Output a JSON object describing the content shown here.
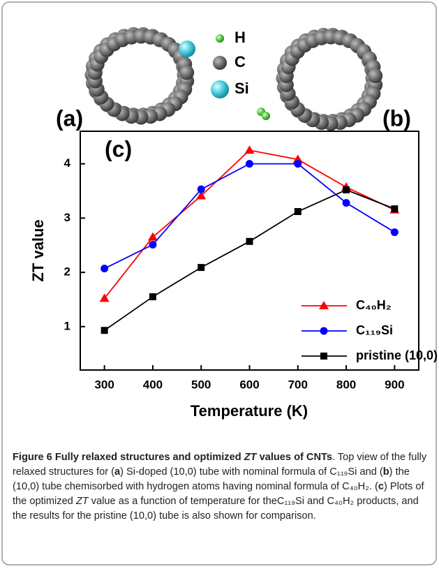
{
  "panels": {
    "a": "(a)",
    "b": "(b)"
  },
  "atom_legend": [
    "H",
    "C",
    "Si"
  ],
  "chart_data": {
    "type": "line",
    "panel_label": "(c)",
    "x_label": "Temperature (K)",
    "y_label": "ZT value",
    "x": [
      300,
      400,
      500,
      600,
      700,
      800,
      900
    ],
    "series": [
      {
        "name": "C₄₀H₂",
        "color": "#ff0000",
        "marker": "triangle",
        "values": [
          1.52,
          2.65,
          3.41,
          4.25,
          4.08,
          3.57,
          3.15
        ]
      },
      {
        "name": "C₁₁₉Si",
        "color": "#0000ff",
        "marker": "circle",
        "values": [
          2.07,
          2.51,
          3.53,
          4.0,
          4.0,
          3.28,
          2.74
        ]
      },
      {
        "name": "pristine (10,0)",
        "color": "#000000",
        "marker": "square",
        "values": [
          0.93,
          1.55,
          2.09,
          2.57,
          3.12,
          3.52,
          3.17
        ]
      }
    ],
    "xlim": [
      250,
      950
    ],
    "xticks": [
      300,
      400,
      500,
      600,
      700,
      800,
      900
    ],
    "ylim": [
      0.2,
      4.6
    ],
    "yticks": [
      1,
      2,
      3,
      4
    ],
    "legend": "lower right"
  },
  "caption": [
    "Figure 6 Fully relaxed structures and optimized ",
    "ZT",
    " values of CNTs",
    ". Top view of the fully relaxed structures for (",
    "a",
    ") Si-doped (10,0) tube with nominal formula of C₁₁₉Si and (",
    "b",
    ") the (10,0) tube chemisorbed with hydrogen atoms having nominal formula of C₄₀H₂. (",
    "c",
    ") Plots of the optimized ",
    "ZT",
    " value as a function of temperature for theC₁₁₉Si and C₄₀H₂ products, and the results for the pristine (10,0) tube is also shown for comparison."
  ]
}
